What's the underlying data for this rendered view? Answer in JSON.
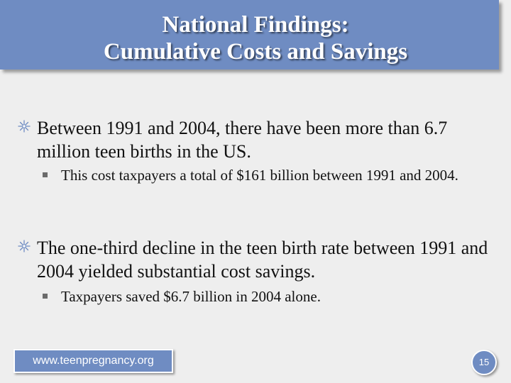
{
  "slide": {
    "title_line1": "National Findings:",
    "title_line2": "Cumulative Costs and Savings",
    "bullets": [
      {
        "text": "Between 1991 and 2004, there have been more than 6.7 million teen births in the US.",
        "sub": "This cost taxpayers a total of $161 billion between 1991 and 2004."
      },
      {
        "text": "The one-third decline in the teen birth rate between 1991 and 2004 yielded substantial cost savings.",
        "sub": "Taxpayers saved $6.7 billion in 2004 alone."
      }
    ],
    "footer_url": "www.teenpregnancy.org",
    "page_number": "15"
  },
  "colors": {
    "accent": "#6f8cc2",
    "background": "#eeeeee",
    "text": "#111111"
  },
  "icons": {
    "level1_bullet": "star-bullet-icon",
    "level2_bullet": "square-bullet-icon"
  }
}
